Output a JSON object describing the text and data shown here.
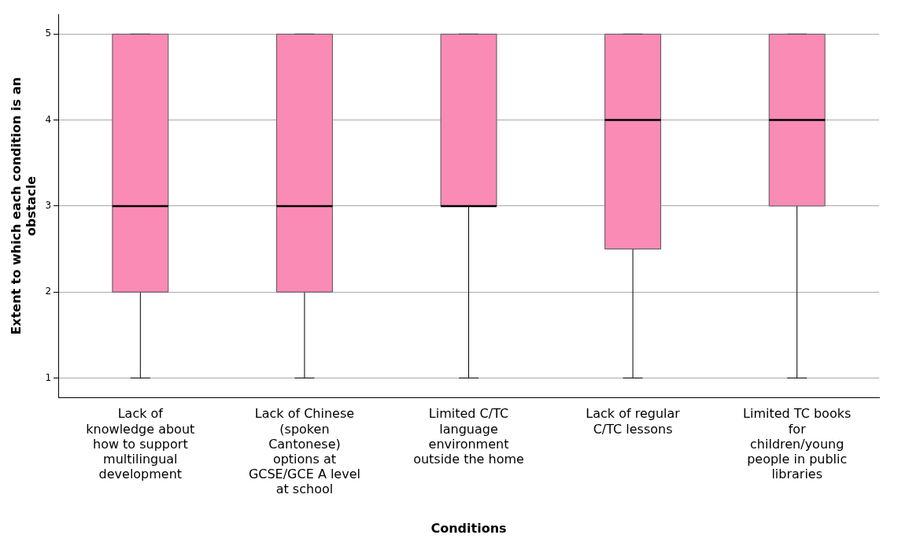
{
  "chart_data": {
    "type": "box",
    "xlabel": "Conditions",
    "ylabel": "Extent to which each condition is an obstacle",
    "categories": [
      "Lack of knowledge about how to support multilingual development",
      "Lack of Chinese (spoken Cantonese) options at GCSE/GCE A level at school",
      "Limited C/TC language environment outside the home",
      "Lack of regular C/TC lessons",
      "Limited TC books for children/young people in public libraries"
    ],
    "color": "#f98bb5",
    "boxes": [
      {
        "low": 1,
        "q1": 2,
        "median": 3,
        "q3": 5,
        "high": 5
      },
      {
        "low": 1,
        "q1": 2,
        "median": 3,
        "q3": 5,
        "high": 5
      },
      {
        "low": 1,
        "q1": 3,
        "median": 3,
        "q3": 5,
        "high": 5
      },
      {
        "low": 1,
        "q1": 2.5,
        "median": 4,
        "q3": 5,
        "high": 5
      },
      {
        "low": 1,
        "q1": 3,
        "median": 4,
        "q3": 5,
        "high": 5
      }
    ],
    "ylim": [
      0.77,
      5.23
    ],
    "yticks": [
      1,
      2,
      3,
      4,
      5
    ],
    "grid": "y",
    "legend": false
  }
}
